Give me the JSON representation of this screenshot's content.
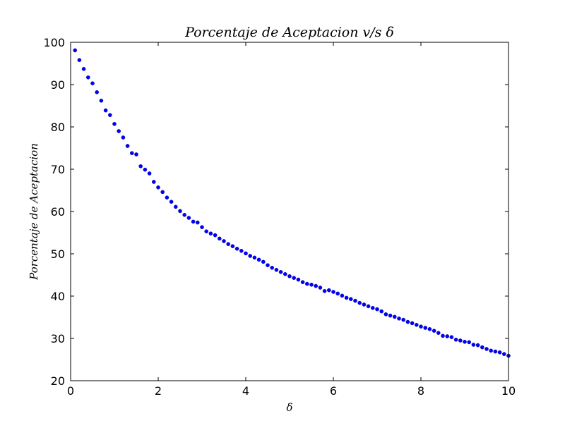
{
  "chart_data": {
    "type": "scatter",
    "title": "Porcentaje de Aceptacion v/s δ",
    "xlabel": "δ",
    "ylabel": "Porcentaje de Aceptacion",
    "xlim": [
      0,
      10
    ],
    "ylim": [
      20,
      100
    ],
    "xticks": [
      "0",
      "2",
      "4",
      "6",
      "8",
      "10"
    ],
    "yticks": [
      "20",
      "30",
      "40",
      "50",
      "60",
      "70",
      "80",
      "90",
      "100"
    ],
    "grid": false,
    "marker_color": "#0000ff",
    "series": [
      {
        "x": [
          0.1,
          0.2,
          0.3,
          0.4,
          0.5,
          0.6,
          0.7,
          0.8,
          0.9,
          1.0,
          1.1,
          1.2,
          1.3,
          1.4,
          1.5,
          1.6,
          1.7,
          1.8,
          1.9,
          2.0,
          2.1,
          2.2,
          2.3,
          2.4,
          2.5,
          2.6,
          2.7,
          2.8,
          2.9,
          3.0,
          3.1,
          3.2,
          3.3,
          3.4,
          3.5,
          3.6,
          3.7,
          3.8,
          3.9,
          4.0,
          4.1,
          4.2,
          4.3,
          4.4,
          4.5,
          4.6,
          4.7,
          4.8,
          4.9,
          5.0,
          5.1,
          5.2,
          5.3,
          5.4,
          5.5,
          5.6,
          5.7,
          5.8,
          5.9,
          6.0,
          6.1,
          6.2,
          6.3,
          6.4,
          6.5,
          6.6,
          6.7,
          6.8,
          6.9,
          7.0,
          7.1,
          7.2,
          7.3,
          7.4,
          7.5,
          7.6,
          7.7,
          7.8,
          7.9,
          8.0,
          8.1,
          8.2,
          8.3,
          8.4,
          8.5,
          8.6,
          8.7,
          8.8,
          8.9,
          9.0,
          9.1,
          9.2,
          9.3,
          9.4,
          9.5,
          9.6,
          9.7,
          9.8,
          9.9,
          10.0
        ],
        "y": [
          98.1,
          95.8,
          93.7,
          91.7,
          90.3,
          88.2,
          86.2,
          83.9,
          82.8,
          80.7,
          79.0,
          77.5,
          75.5,
          73.8,
          73.5,
          70.7,
          69.9,
          69.0,
          67.0,
          65.7,
          64.6,
          63.3,
          62.3,
          61.1,
          60.1,
          59.2,
          58.5,
          57.6,
          57.4,
          56.3,
          55.3,
          54.8,
          54.4,
          53.6,
          53.0,
          52.3,
          51.8,
          51.2,
          50.7,
          50.1,
          49.5,
          49.1,
          48.6,
          48.1,
          47.3,
          46.7,
          46.2,
          45.7,
          45.2,
          44.7,
          44.3,
          43.9,
          43.3,
          42.9,
          42.7,
          42.4,
          42.0,
          41.2,
          41.4,
          41.0,
          40.6,
          40.1,
          39.6,
          39.3,
          38.9,
          38.4,
          38.0,
          37.6,
          37.2,
          36.9,
          36.4,
          35.7,
          35.4,
          35.1,
          34.7,
          34.4,
          33.9,
          33.6,
          33.2,
          32.8,
          32.5,
          32.2,
          31.8,
          31.3,
          30.6,
          30.5,
          30.3,
          29.7,
          29.5,
          29.2,
          29.1,
          28.5,
          28.4,
          27.9,
          27.5,
          27.1,
          26.9,
          26.7,
          26.3,
          25.9
        ]
      }
    ]
  }
}
